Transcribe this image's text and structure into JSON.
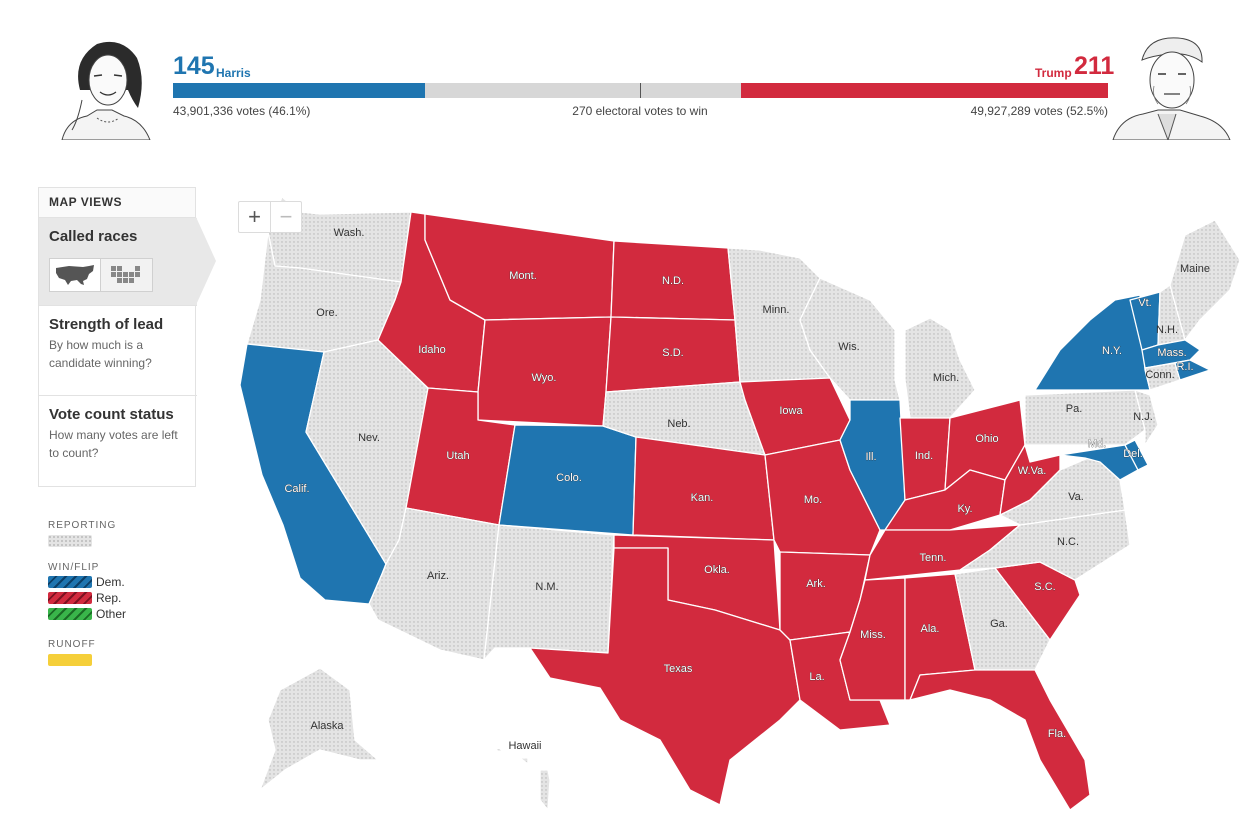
{
  "header": {
    "harris": {
      "electoral_votes": "145",
      "name": "Harris",
      "popular_votes": "43,901,336 votes (46.1%)",
      "color": "#1f75b0"
    },
    "trump": {
      "electoral_votes": "211",
      "name": "Trump",
      "popular_votes": "49,927,289 votes (52.5%)",
      "color": "#d22a3e"
    },
    "threshold_text": "270 electoral votes to win",
    "bar": {
      "dem_ev": 145,
      "rep_ev": 211,
      "total_ev": 538,
      "to_win": 270
    }
  },
  "map_views": {
    "title": "MAP VIEWS",
    "items": [
      {
        "label": "Called races",
        "description": ""
      },
      {
        "label": "Strength of lead",
        "description": "By how much is a candidate winning?"
      },
      {
        "label": "Vote count status",
        "description": "How many votes are left to count?"
      }
    ]
  },
  "legend": {
    "reporting_title": "REPORTING",
    "winflip_title": "WIN/FLIP",
    "dem_label": "Dem.",
    "rep_label": "Rep.",
    "other_label": "Other",
    "runoff_title": "RUNOFF",
    "colors": {
      "dem": "#1f75b0",
      "rep": "#d22a3e",
      "other": "#39b54a",
      "runoff": "#f5cf3a",
      "reporting": "#e4e4e4"
    }
  },
  "zoom": {
    "in_label": "+",
    "out_label": "−"
  },
  "states": {
    "wa": {
      "label": "Wash.",
      "status": "reporting"
    },
    "or": {
      "label": "Ore.",
      "status": "reporting"
    },
    "ca": {
      "label": "Calif.",
      "status": "dem"
    },
    "nv": {
      "label": "Nev.",
      "status": "reporting"
    },
    "id": {
      "label": "Idaho",
      "status": "rep"
    },
    "mt": {
      "label": "Mont.",
      "status": "rep"
    },
    "wy": {
      "label": "Wyo.",
      "status": "rep"
    },
    "ut": {
      "label": "Utah",
      "status": "rep"
    },
    "az": {
      "label": "Ariz.",
      "status": "reporting"
    },
    "co": {
      "label": "Colo.",
      "status": "dem"
    },
    "nm": {
      "label": "N.M.",
      "status": "reporting"
    },
    "nd": {
      "label": "N.D.",
      "status": "rep"
    },
    "sd": {
      "label": "S.D.",
      "status": "rep"
    },
    "ne": {
      "label": "Neb.",
      "status": "reporting"
    },
    "ks": {
      "label": "Kan.",
      "status": "rep"
    },
    "ok": {
      "label": "Okla.",
      "status": "rep"
    },
    "tx": {
      "label": "Texas",
      "status": "rep"
    },
    "mn": {
      "label": "Minn.",
      "status": "reporting"
    },
    "ia": {
      "label": "Iowa",
      "status": "rep"
    },
    "mo": {
      "label": "Mo.",
      "status": "rep"
    },
    "ar": {
      "label": "Ark.",
      "status": "rep"
    },
    "la": {
      "label": "La.",
      "status": "rep"
    },
    "wi": {
      "label": "Wis.",
      "status": "reporting"
    },
    "il": {
      "label": "Ill.",
      "status": "dem"
    },
    "mi": {
      "label": "Mich.",
      "status": "reporting"
    },
    "in": {
      "label": "Ind.",
      "status": "rep"
    },
    "oh": {
      "label": "Ohio",
      "status": "rep"
    },
    "ky": {
      "label": "Ky.",
      "status": "rep"
    },
    "tn": {
      "label": "Tenn.",
      "status": "rep"
    },
    "ms": {
      "label": "Miss.",
      "status": "rep"
    },
    "al": {
      "label": "Ala.",
      "status": "rep"
    },
    "ga": {
      "label": "Ga.",
      "status": "reporting"
    },
    "fl": {
      "label": "Fla.",
      "status": "rep"
    },
    "sc": {
      "label": "S.C.",
      "status": "rep"
    },
    "nc": {
      "label": "N.C.",
      "status": "reporting"
    },
    "va": {
      "label": "Va.",
      "status": "reporting"
    },
    "wv": {
      "label": "W.Va.",
      "status": "rep"
    },
    "pa": {
      "label": "Pa.",
      "status": "reporting"
    },
    "ny": {
      "label": "N.Y.",
      "status": "dem"
    },
    "nj": {
      "label": "N.J.",
      "status": "reporting"
    },
    "md": {
      "label": "Md.",
      "status": "dem"
    },
    "de": {
      "label": "Del.",
      "status": "dem"
    },
    "vt": {
      "label": "Vt.",
      "status": "dem"
    },
    "nh": {
      "label": "N.H.",
      "status": "reporting"
    },
    "me": {
      "label": "Maine",
      "status": "reporting"
    },
    "ma": {
      "label": "Mass.",
      "status": "dem"
    },
    "ri": {
      "label": "R.I.",
      "status": "dem"
    },
    "ct": {
      "label": "Conn.",
      "status": "reporting"
    },
    "ak": {
      "label": "Alaska",
      "status": "reporting"
    },
    "hi": {
      "label": "Hawaii",
      "status": "reporting"
    }
  }
}
